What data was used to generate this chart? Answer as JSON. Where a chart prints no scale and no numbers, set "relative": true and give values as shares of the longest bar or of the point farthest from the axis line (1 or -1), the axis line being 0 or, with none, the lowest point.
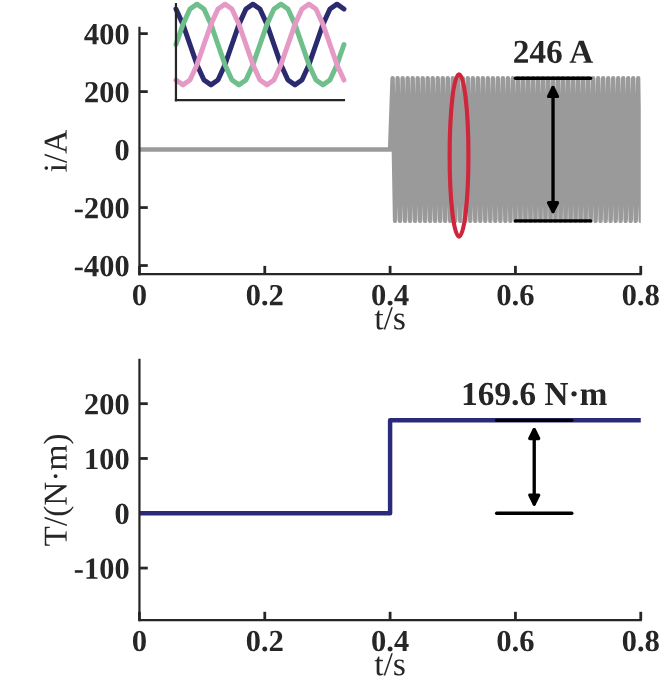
{
  "chart_data": [
    {
      "type": "line",
      "xlabel": "t/s",
      "ylabel": "i/A",
      "xlim": [
        0,
        0.8
      ],
      "xticks": [
        0,
        0.2,
        0.4,
        0.6,
        0.8
      ],
      "ylim": [
        -430,
        420
      ],
      "yticks": [
        -400,
        -200,
        0,
        200,
        400
      ],
      "grid": false,
      "legend": false,
      "series": [
        {
          "color": "#9a9a9a",
          "x": [
            0,
            0.4,
            0.404,
            0.408,
            0.412,
            0.416,
            0.42,
            0.424,
            0.428,
            0.432,
            0.436,
            0.44,
            0.444,
            0.448,
            0.452,
            0.456,
            0.46,
            0.464,
            0.468,
            0.472,
            0.476,
            0.48,
            0.484,
            0.488,
            0.492,
            0.496,
            0.5,
            0.504,
            0.508,
            0.512,
            0.516,
            0.52,
            0.524,
            0.528,
            0.532,
            0.536,
            0.54,
            0.544,
            0.548,
            0.552,
            0.556,
            0.56,
            0.564,
            0.568,
            0.572,
            0.576,
            0.58,
            0.584,
            0.588,
            0.592,
            0.596,
            0.6,
            0.604,
            0.608,
            0.612,
            0.616,
            0.62,
            0.624,
            0.628,
            0.632,
            0.636,
            0.64,
            0.644,
            0.648,
            0.652,
            0.656,
            0.66,
            0.664,
            0.668,
            0.672,
            0.676,
            0.68,
            0.684,
            0.688,
            0.692,
            0.696,
            0.7,
            0.704,
            0.708,
            0.712,
            0.716,
            0.72,
            0.724,
            0.728,
            0.732,
            0.736,
            0.74,
            0.744,
            0.748,
            0.752,
            0.756,
            0.76,
            0.764,
            0.768,
            0.772,
            0.776,
            0.78,
            0.784,
            0.788,
            0.792,
            0.796,
            0.8
          ],
          "values": [
            0,
            0,
            246,
            -246,
            246,
            -246,
            246,
            -246,
            246,
            -246,
            246,
            -246,
            246,
            -246,
            246,
            -246,
            246,
            -246,
            246,
            -246,
            246,
            -246,
            246,
            -246,
            246,
            -246,
            246,
            -246,
            246,
            -246,
            246,
            -246,
            246,
            -246,
            246,
            -246,
            246,
            -246,
            246,
            -246,
            246,
            -246,
            246,
            -246,
            246,
            -246,
            246,
            -246,
            246,
            -246,
            246,
            -246,
            246,
            -246,
            246,
            -246,
            246,
            -246,
            246,
            -246,
            246,
            -246,
            246,
            -246,
            246,
            -246,
            246,
            -246,
            246,
            -246,
            246,
            -246,
            246,
            -246,
            246,
            -246,
            246,
            -246,
            246,
            -246,
            246,
            -246,
            246,
            -246,
            246,
            -246,
            246,
            -246,
            246,
            -246,
            246,
            -246,
            246,
            -246,
            246,
            -246,
            246,
            -246,
            246,
            -246,
            246,
            -246
          ]
        }
      ],
      "annotations": [
        {
          "text": "246 A",
          "x": 0.66,
          "y": 246
        }
      ]
    },
    {
      "type": "line",
      "relative": true,
      "legend": false,
      "grid": false,
      "categories": [
        null,
        null,
        null,
        null,
        null,
        null,
        null,
        null,
        null,
        null,
        null,
        null,
        null,
        null,
        null,
        null,
        null,
        null,
        null,
        null,
        null,
        null,
        null,
        null,
        null
      ],
      "series": [
        {
          "color": "#2b2a6e",
          "values": [
            0.95,
            0.79,
            0.58,
            0.37,
            0.21,
            0.16,
            0.21,
            0.37,
            0.58,
            0.79,
            0.95,
            1,
            0.95,
            0.79,
            0.58,
            0.37,
            0.21,
            0.16,
            0.21,
            0.37,
            0.58,
            0.79,
            0.95,
            1,
            0.95
          ]
        },
        {
          "color": "#6fbf8a",
          "values": [
            0.58,
            0.79,
            0.95,
            1,
            0.95,
            0.79,
            0.58,
            0.37,
            0.21,
            0.16,
            0.21,
            0.37,
            0.58,
            0.79,
            0.95,
            1,
            0.95,
            0.79,
            0.58,
            0.37,
            0.21,
            0.16,
            0.21,
            0.37,
            0.58
          ]
        },
        {
          "color": "#e59ac6",
          "values": [
            0.21,
            0.16,
            0.21,
            0.37,
            0.58,
            0.79,
            0.95,
            1,
            0.95,
            0.79,
            0.58,
            0.37,
            0.21,
            0.16,
            0.21,
            0.37,
            0.58,
            0.79,
            0.95,
            1,
            0.95,
            0.79,
            0.58,
            0.37,
            0.21
          ]
        }
      ]
    },
    {
      "type": "line",
      "xlabel": "t/s",
      "ylabel": "T/(N·m)",
      "xlim": [
        0,
        0.8
      ],
      "xticks": [
        0,
        0.2,
        0.4,
        0.6,
        0.8
      ],
      "ylim": [
        -195,
        280
      ],
      "yticks": [
        -100,
        0,
        100,
        200
      ],
      "grid": false,
      "legend": false,
      "series": [
        {
          "color": "#2b2a7a",
          "x": [
            0,
            0.4,
            0.4,
            0.8
          ],
          "values": [
            0,
            0,
            169.6,
            169.6
          ]
        }
      ],
      "annotations": [
        {
          "text": "169.6 N·m",
          "x": 0.63,
          "y": 169.6
        }
      ]
    }
  ]
}
